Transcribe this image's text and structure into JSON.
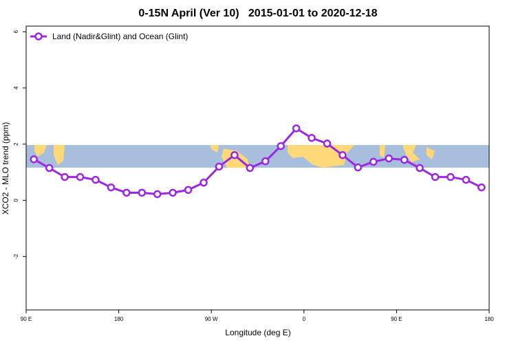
{
  "chart_data": {
    "type": "line",
    "title": "0-15N April (Ver 10)   2015-01-01 to 2020-12-18",
    "xlabel": "Longitude (deg E)",
    "ylabel": "XCO2 - MLO trend (ppm)",
    "x": [
      97.5,
      112.5,
      127.5,
      142.5,
      157.5,
      172.5,
      187.5,
      202.5,
      217.5,
      232.5,
      247.5,
      262.5,
      277.5,
      292.5,
      307.5,
      322.5,
      337.5,
      352.5,
      367.5,
      382.5,
      397.5,
      412.5,
      427.5,
      442.5,
      457.5,
      472.5,
      487.5,
      502.5,
      517.5,
      532.5
    ],
    "series": [
      {
        "name": "Land (Nadir&Glint) and Ocean (Glint)",
        "color": "#9b27e0",
        "values": [
          1.46,
          1.15,
          0.83,
          0.83,
          0.73,
          0.46,
          0.27,
          0.27,
          0.22,
          0.27,
          0.37,
          0.63,
          1.2,
          1.61,
          1.15,
          1.39,
          1.93,
          2.56,
          2.22,
          2.02,
          1.61,
          1.17,
          1.37,
          1.49,
          1.44,
          1.15,
          0.83,
          0.83,
          0.73,
          0.46
        ]
      }
    ],
    "xlim": [
      90,
      540
    ],
    "xticks": [
      {
        "value": 90,
        "label": "90 E"
      },
      {
        "value": 180,
        "label": "180"
      },
      {
        "value": 270,
        "label": "90 W"
      },
      {
        "value": 360,
        "label": "0"
      },
      {
        "value": 450,
        "label": "90 E"
      },
      {
        "value": 540,
        "label": "180"
      }
    ],
    "ylim": [
      -3.9,
      6.2
    ],
    "yticks": [
      -2,
      0,
      2,
      4,
      6
    ],
    "legend": "top-left"
  }
}
